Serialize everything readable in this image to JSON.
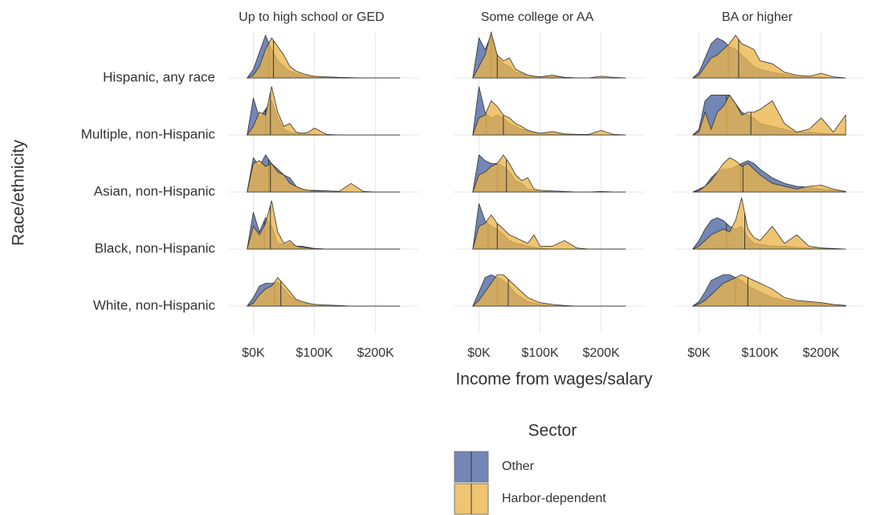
{
  "chart_data": {
    "type": "ridgeline",
    "xlabel": "Income from wages/salary",
    "ylabel": "Race/ethnicity",
    "legend_title": "Sector",
    "categories": [
      "Hispanic, any race",
      "Multiple, non-Hispanic",
      "Asian, non-Hispanic",
      "Black, non-Hispanic",
      "White, non-Hispanic"
    ],
    "series": [
      {
        "name": "Other",
        "color": "#4c64a0"
      },
      {
        "name": "Harbor-dependent",
        "color": "#eab54a"
      }
    ],
    "x": [
      -10,
      0,
      10,
      20,
      30,
      40,
      50,
      60,
      70,
      80,
      90,
      100,
      120,
      140,
      160,
      180,
      200,
      220,
      240
    ],
    "xlim": [
      -40,
      270
    ],
    "xticks": [
      {
        "value": 0,
        "label": "$0K"
      },
      {
        "value": 100,
        "label": "$100K"
      },
      {
        "value": 200,
        "label": "$200K"
      }
    ],
    "grid": true,
    "facets": [
      {
        "title": "Up to high school or GED",
        "densities": [
          [
            [
              0,
              0.15,
              0.45,
              0.75,
              0.5,
              0.3,
              0.2,
              0.12,
              0.08,
              0.05,
              0.03,
              0.02,
              0.01,
              0.005,
              0,
              0,
              0,
              0,
              0
            ],
            [
              0,
              0.65,
              0.3,
              0.45,
              0.6,
              0.3,
              0.1,
              0.05,
              0.03,
              0.02,
              0.02,
              0.01,
              0,
              0,
              0,
              0,
              0,
              0,
              0
            ],
            [
              0,
              0.6,
              0.45,
              0.65,
              0.5,
              0.4,
              0.3,
              0.25,
              0.1,
              0.05,
              0.03,
              0.03,
              0.02,
              0.01,
              0,
              0,
              0,
              0,
              0
            ],
            [
              0,
              0.65,
              0.3,
              0.55,
              0.4,
              0.1,
              0.08,
              0.1,
              0.05,
              0.05,
              0.03,
              0.01,
              0,
              0,
              0,
              0,
              0,
              0,
              0
            ],
            [
              0,
              0.15,
              0.35,
              0.4,
              0.4,
              0.42,
              0.3,
              0.18,
              0.1,
              0.06,
              0.04,
              0.03,
              0.01,
              0,
              0,
              0,
              0,
              0,
              0
            ]
          ],
          [
            [
              0,
              0.05,
              0.2,
              0.5,
              0.7,
              0.55,
              0.4,
              0.2,
              0.12,
              0.08,
              0.05,
              0.03,
              0.02,
              0.01,
              0.005,
              0,
              0,
              0,
              0
            ],
            [
              0,
              0.15,
              0.4,
              0.35,
              0.85,
              0.4,
              0.15,
              0.2,
              0.05,
              0.03,
              0.05,
              0.12,
              0.01,
              0,
              0,
              0,
              0,
              0,
              0
            ],
            [
              0,
              0.5,
              0.55,
              0.45,
              0.5,
              0.35,
              0.3,
              0.15,
              0.1,
              0.05,
              0.03,
              0.02,
              0.02,
              0.01,
              0.15,
              0.01,
              0,
              0,
              0
            ],
            [
              0,
              0.4,
              0.25,
              0.45,
              0.85,
              0.3,
              0.1,
              0.15,
              0.05,
              0.03,
              0.02,
              0.01,
              0,
              0,
              0,
              0,
              0,
              0,
              0
            ],
            [
              0,
              0.05,
              0.2,
              0.3,
              0.35,
              0.5,
              0.38,
              0.25,
              0.12,
              0.08,
              0.05,
              0.03,
              0.02,
              0.01,
              0,
              0,
              0,
              0,
              0
            ]
          ]
        ],
        "medians": [
          [
            25,
            20,
            25,
            18,
            35
          ],
          [
            33,
            28,
            28,
            28,
            45
          ]
        ]
      },
      {
        "title": "Some college or AA",
        "densities": [
          [
            [
              0,
              0.7,
              0.5,
              0.75,
              0.35,
              0.25,
              0.2,
              0.1,
              0.08,
              0.05,
              0.03,
              0.02,
              0.03,
              0.01,
              0,
              0,
              0,
              0,
              0
            ],
            [
              0,
              0.85,
              0.4,
              0.3,
              0.35,
              0.3,
              0.2,
              0.15,
              0.1,
              0.08,
              0.05,
              0.03,
              0.02,
              0.01,
              0,
              0,
              0,
              0,
              0
            ],
            [
              0,
              0.65,
              0.55,
              0.5,
              0.5,
              0.45,
              0.35,
              0.2,
              0.15,
              0.05,
              0.03,
              0.02,
              0.01,
              0,
              0,
              0,
              0,
              0,
              0
            ],
            [
              0,
              0.8,
              0.5,
              0.4,
              0.35,
              0.25,
              0.15,
              0.1,
              0.08,
              0.05,
              0.03,
              0.02,
              0,
              0,
              0,
              0,
              0,
              0,
              0
            ],
            [
              0,
              0.25,
              0.5,
              0.55,
              0.5,
              0.45,
              0.35,
              0.22,
              0.15,
              0.08,
              0.05,
              0.03,
              0.01,
              0,
              0,
              0,
              0,
              0,
              0
            ]
          ],
          [
            [
              0,
              0.2,
              0.4,
              0.8,
              0.4,
              0.3,
              0.35,
              0.15,
              0.1,
              0.05,
              0.03,
              0.02,
              0.05,
              0.01,
              0,
              0,
              0.03,
              0.01,
              0
            ],
            [
              0,
              0.3,
              0.35,
              0.6,
              0.5,
              0.35,
              0.3,
              0.2,
              0.15,
              0.08,
              0.05,
              0.03,
              0.06,
              0.02,
              0.01,
              0.01,
              0.08,
              0.01,
              0
            ],
            [
              0,
              0.3,
              0.35,
              0.45,
              0.5,
              0.65,
              0.5,
              0.3,
              0.2,
              0.25,
              0.05,
              0.03,
              0.02,
              0.01,
              0,
              0,
              0.01,
              0,
              0
            ],
            [
              0,
              0.4,
              0.45,
              0.6,
              0.45,
              0.35,
              0.25,
              0.2,
              0.15,
              0.1,
              0.25,
              0.05,
              0.05,
              0.15,
              0.02,
              0,
              0,
              0,
              0
            ],
            [
              0,
              0.1,
              0.25,
              0.4,
              0.55,
              0.55,
              0.45,
              0.35,
              0.25,
              0.15,
              0.1,
              0.06,
              0.03,
              0.01,
              0,
              0,
              0,
              0,
              0
            ]
          ]
        ],
        "medians": [
          [
            20,
            12,
            30,
            15,
            30
          ],
          [
            30,
            40,
            45,
            30,
            48
          ]
        ]
      },
      {
        "title": "BA or higher",
        "densities": [
          [
            [
              0,
              0.1,
              0.35,
              0.6,
              0.7,
              0.65,
              0.55,
              0.5,
              0.4,
              0.3,
              0.2,
              0.15,
              0.1,
              0.06,
              0.03,
              0.02,
              0.01,
              0,
              0
            ],
            [
              0,
              0.1,
              0.6,
              0.7,
              0.7,
              0.7,
              0.7,
              0.55,
              0.4,
              0.35,
              0.3,
              0.2,
              0.15,
              0.1,
              0.05,
              0.05,
              0.03,
              0.02,
              0.01
            ],
            [
              0,
              0.05,
              0.1,
              0.25,
              0.35,
              0.4,
              0.4,
              0.45,
              0.5,
              0.55,
              0.5,
              0.4,
              0.25,
              0.15,
              0.1,
              0.08,
              0.05,
              0.03,
              0.01
            ],
            [
              0,
              0.15,
              0.35,
              0.5,
              0.55,
              0.5,
              0.4,
              0.35,
              0.4,
              0.2,
              0.1,
              0.08,
              0.05,
              0.05,
              0.03,
              0.02,
              0.02,
              0.01,
              0
            ],
            [
              0,
              0.08,
              0.25,
              0.45,
              0.5,
              0.55,
              0.55,
              0.5,
              0.45,
              0.35,
              0.3,
              0.25,
              0.15,
              0.1,
              0.08,
              0.06,
              0.04,
              0.02,
              0.01
            ]
          ],
          [
            [
              0,
              0.05,
              0.2,
              0.35,
              0.4,
              0.5,
              0.6,
              0.75,
              0.6,
              0.55,
              0.5,
              0.3,
              0.25,
              0.1,
              0.05,
              0.03,
              0.08,
              0.02,
              0
            ],
            [
              0,
              0.05,
              0.4,
              0.1,
              0.4,
              0.5,
              0.7,
              0.55,
              0.35,
              0.4,
              0.4,
              0.45,
              0.6,
              0.2,
              0.05,
              0.1,
              0.3,
              0.05,
              0.35
            ],
            [
              0,
              0.02,
              0.1,
              0.2,
              0.35,
              0.5,
              0.6,
              0.55,
              0.45,
              0.5,
              0.4,
              0.3,
              0.15,
              0.1,
              0.05,
              0.1,
              0.12,
              0.05,
              0.01
            ],
            [
              0,
              0.05,
              0.15,
              0.25,
              0.3,
              0.35,
              0.3,
              0.5,
              0.9,
              0.35,
              0.2,
              0.15,
              0.4,
              0.1,
              0.25,
              0.05,
              0.02,
              0,
              0
            ],
            [
              0,
              0.04,
              0.1,
              0.2,
              0.3,
              0.4,
              0.45,
              0.5,
              0.55,
              0.5,
              0.45,
              0.4,
              0.3,
              0.15,
              0.1,
              0.08,
              0.06,
              0.03,
              0.01
            ]
          ]
        ],
        "medians": [
          [
            48,
            45,
            68,
            45,
            60
          ],
          [
            65,
            85,
            72,
            75,
            80
          ]
        ]
      }
    ]
  }
}
